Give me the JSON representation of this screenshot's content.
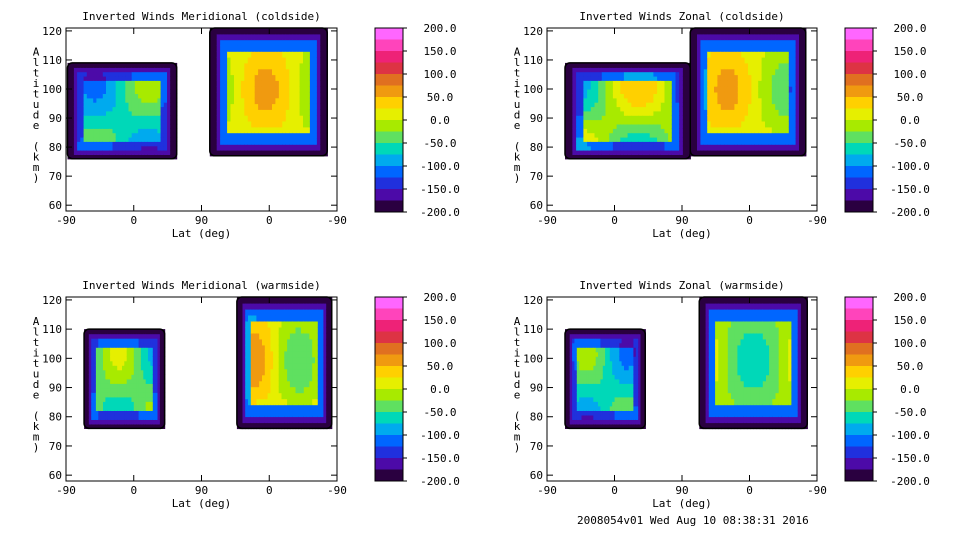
{
  "footer": "2008054v01 Wed Aug 10 08:38:31 2016",
  "chart_data": [
    {
      "type": "contour",
      "title": "Inverted Winds Meridional (coldside)",
      "xlabel": "Lat (deg)",
      "ylabel": "Altitude (km)",
      "x_tick_labels": [
        "-90",
        "0",
        "90",
        "0",
        "-90"
      ],
      "y_ticks": [
        60,
        70,
        80,
        90,
        100,
        110,
        120
      ],
      "ylim": [
        58,
        121
      ],
      "panels": [
        {
          "xrange": [
            -88,
            57
          ],
          "altrange": [
            76,
            109
          ],
          "mean": -60,
          "amp": 50
        },
        {
          "xrange": [
            101,
            257
          ],
          "altrange": [
            77,
            121
          ],
          "mean": 10,
          "amp": 50
        }
      ]
    },
    {
      "type": "contour",
      "title": "Inverted Winds Zonal (coldside)",
      "xlabel": "Lat (deg)",
      "ylabel": "Altitude (km)",
      "x_tick_labels": [
        "-90",
        "0",
        "90",
        "0",
        "-90"
      ],
      "y_ticks": [
        60,
        70,
        80,
        90,
        100,
        110,
        120
      ],
      "ylim": [
        58,
        121
      ],
      "panels": [
        {
          "xrange": [
            -66,
            101
          ],
          "altrange": [
            76,
            109
          ],
          "mean": -20,
          "amp": 70
        },
        {
          "xrange": [
            101,
            255
          ],
          "altrange": [
            77,
            121
          ],
          "mean": 10,
          "amp": 50
        }
      ]
    },
    {
      "type": "contour",
      "title": "Inverted Winds Meridional (warmside)",
      "xlabel": "Lat (deg)",
      "ylabel": "Altitude (km)",
      "x_tick_labels": [
        "-90",
        "0",
        "90",
        "0",
        "-90"
      ],
      "y_ticks": [
        60,
        70,
        80,
        90,
        100,
        110,
        120
      ],
      "ylim": [
        58,
        121
      ],
      "panels": [
        {
          "xrange": [
            -66,
            41
          ],
          "altrange": [
            76,
            110
          ],
          "mean": -40,
          "amp": 50
        },
        {
          "xrange": [
            137,
            263
          ],
          "altrange": [
            76,
            121
          ],
          "mean": 10,
          "amp": 60
        }
      ]
    },
    {
      "type": "contour",
      "title": "Inverted Winds Zonal (warmside)",
      "xlabel": "Lat (deg)",
      "ylabel": "Altitude (km)",
      "x_tick_labels": [
        "-90",
        "0",
        "90",
        "0",
        "-90"
      ],
      "y_ticks": [
        60,
        70,
        80,
        90,
        100,
        110,
        120
      ],
      "ylim": [
        58,
        121
      ],
      "panels": [
        {
          "xrange": [
            -66,
            41
          ],
          "altrange": [
            76,
            110
          ],
          "mean": -60,
          "amp": 50
        },
        {
          "xrange": [
            113,
            257
          ],
          "altrange": [
            76,
            121
          ],
          "mean": -20,
          "amp": 50
        }
      ]
    }
  ],
  "colorbar": {
    "labels": [
      "200.0",
      "150.0",
      "100.0",
      "50.0",
      "0.0",
      "-50.0",
      "-100.0",
      "-150.0",
      "-200.0"
    ],
    "colors": [
      "#ff66ff",
      "#ff44bb",
      "#ee2277",
      "#dd3344",
      "#e07020",
      "#f09a10",
      "#ffd000",
      "#e6ef00",
      "#a8ea00",
      "#5fe060",
      "#00d8b8",
      "#00aaee",
      "#0066ff",
      "#2030dd",
      "#4c0aa8",
      "#2a0040"
    ]
  }
}
